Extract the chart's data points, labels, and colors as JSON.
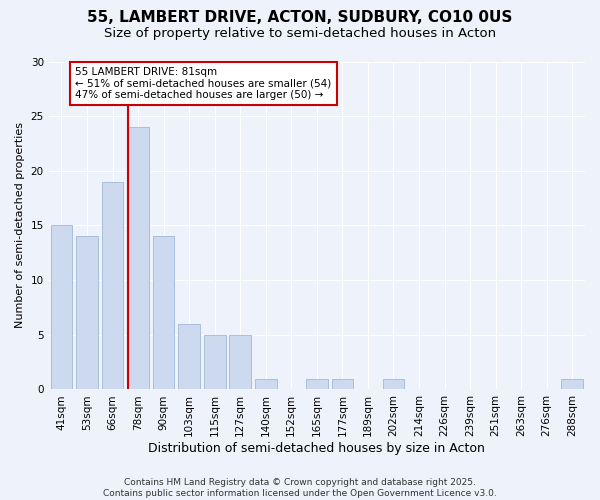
{
  "title": "55, LAMBERT DRIVE, ACTON, SUDBURY, CO10 0US",
  "subtitle": "Size of property relative to semi-detached houses in Acton",
  "xlabel": "Distribution of semi-detached houses by size in Acton",
  "ylabel": "Number of semi-detached properties",
  "categories": [
    "41sqm",
    "53sqm",
    "66sqm",
    "78sqm",
    "90sqm",
    "103sqm",
    "115sqm",
    "127sqm",
    "140sqm",
    "152sqm",
    "165sqm",
    "177sqm",
    "189sqm",
    "202sqm",
    "214sqm",
    "226sqm",
    "239sqm",
    "251sqm",
    "263sqm",
    "276sqm",
    "288sqm"
  ],
  "values": [
    15,
    14,
    19,
    24,
    14,
    6,
    5,
    5,
    1,
    0,
    1,
    1,
    0,
    1,
    0,
    0,
    0,
    0,
    0,
    0,
    1
  ],
  "bar_color": "#ccd9ee",
  "bar_edge_color": "#a0b8d8",
  "highlight_line_index": 3,
  "highlight_line_color": "#cc0000",
  "annotation_box_color": "#cc0000",
  "annotation_text": "55 LAMBERT DRIVE: 81sqm\n← 51% of semi-detached houses are smaller (54)\n47% of semi-detached houses are larger (50) →",
  "ylim": [
    0,
    30
  ],
  "yticks": [
    0,
    5,
    10,
    15,
    20,
    25,
    30
  ],
  "footer": "Contains HM Land Registry data © Crown copyright and database right 2025.\nContains public sector information licensed under the Open Government Licence v3.0.",
  "background_color": "#eef2fb",
  "plot_bg_color": "#eef2fb",
  "title_fontsize": 11,
  "subtitle_fontsize": 9.5,
  "xlabel_fontsize": 9,
  "ylabel_fontsize": 8,
  "tick_fontsize": 7.5,
  "footer_fontsize": 6.5
}
